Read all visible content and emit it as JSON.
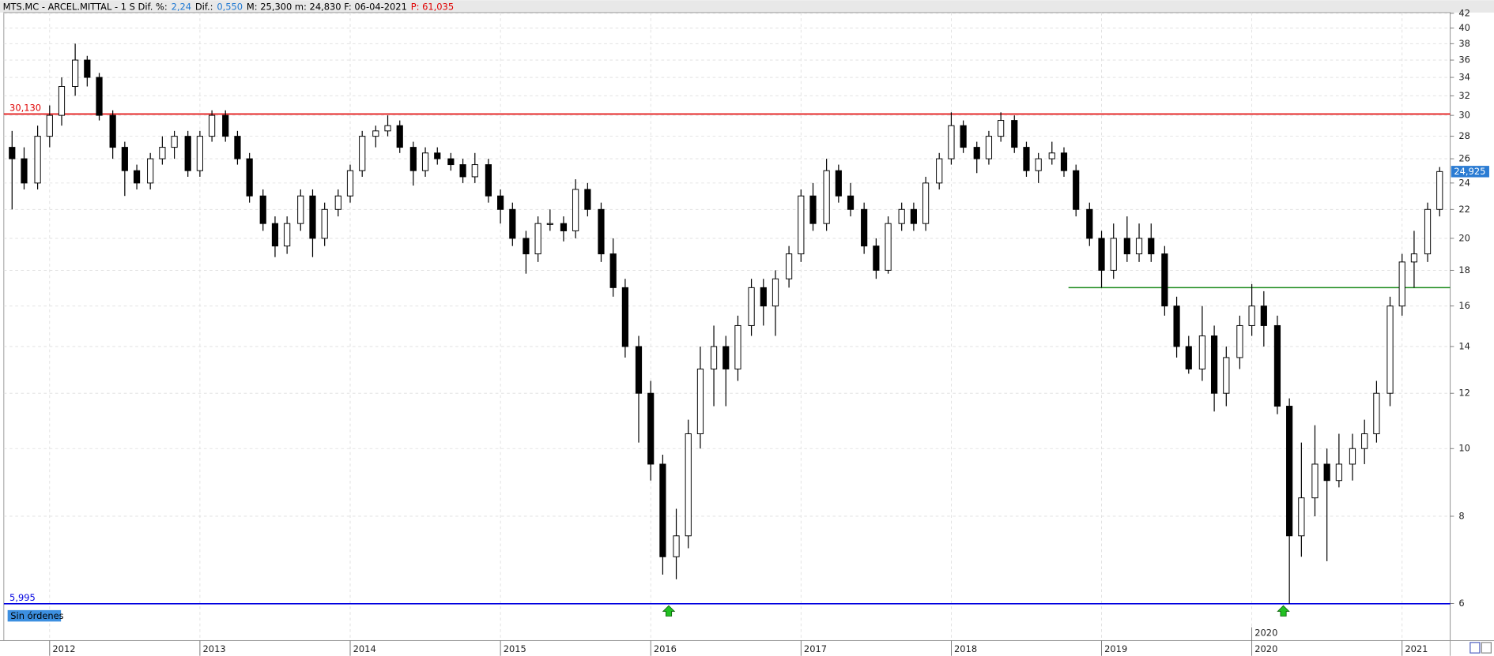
{
  "chart_data": {
    "type": "candlestick",
    "header": [
      {
        "text": "MTS.MC - ARCEL.MITTAL -  1 S  Dif. %:",
        "color": "#000000"
      },
      {
        "text": "2,24",
        "color": "#1e78d2"
      },
      {
        "text": "Dif.:",
        "color": "#000000"
      },
      {
        "text": "0,550",
        "color": "#1e78d2"
      },
      {
        "text": "M: 25,300  m: 24,830  F: 06-04-2021",
        "color": "#000000"
      },
      {
        "text": "P: 61,035",
        "color": "#e00000"
      }
    ],
    "x": [
      2011.75,
      2011.83,
      2011.92,
      2012.0,
      2012.08,
      2012.17,
      2012.25,
      2012.33,
      2012.42,
      2012.5,
      2012.58,
      2012.67,
      2012.75,
      2012.83,
      2012.92,
      2013.0,
      2013.08,
      2013.17,
      2013.25,
      2013.33,
      2013.42,
      2013.5,
      2013.58,
      2013.67,
      2013.75,
      2013.83,
      2013.92,
      2014.0,
      2014.08,
      2014.17,
      2014.25,
      2014.33,
      2014.42,
      2014.5,
      2014.58,
      2014.67,
      2014.75,
      2014.83,
      2014.92,
      2015.0,
      2015.08,
      2015.17,
      2015.25,
      2015.33,
      2015.42,
      2015.5,
      2015.58,
      2015.67,
      2015.75,
      2015.83,
      2015.92,
      2016.0,
      2016.08,
      2016.17,
      2016.25,
      2016.33,
      2016.42,
      2016.5,
      2016.58,
      2016.67,
      2016.75,
      2016.83,
      2016.92,
      2017.0,
      2017.08,
      2017.17,
      2017.25,
      2017.33,
      2017.42,
      2017.5,
      2017.58,
      2017.67,
      2017.75,
      2017.83,
      2017.92,
      2018.0,
      2018.08,
      2018.17,
      2018.25,
      2018.33,
      2018.42,
      2018.5,
      2018.58,
      2018.67,
      2018.75,
      2018.83,
      2018.92,
      2019.0,
      2019.08,
      2019.17,
      2019.25,
      2019.33,
      2019.42,
      2019.5,
      2019.58,
      2019.67,
      2019.75,
      2019.83,
      2019.92,
      2020.0,
      2020.08,
      2020.17,
      2020.25,
      2020.33,
      2020.42,
      2020.5,
      2020.58,
      2020.67,
      2020.75,
      2020.83,
      2020.92,
      2021.0,
      2021.08,
      2021.17,
      2021.25
    ],
    "open": [
      27,
      26,
      24,
      28,
      30,
      33,
      36,
      34,
      30,
      27,
      25,
      24,
      26,
      27,
      28,
      25,
      28,
      30,
      28,
      26,
      23,
      21,
      19.5,
      21,
      23,
      20,
      22,
      23,
      25,
      28,
      28.5,
      29,
      27,
      25,
      26.5,
      26,
      25.5,
      24.5,
      25.5,
      23,
      22,
      20,
      19,
      21,
      21,
      20.5,
      23.5,
      22,
      19,
      17,
      14,
      12,
      9.5,
      7,
      7.5,
      10.5,
      13,
      14,
      13,
      15,
      17,
      16,
      17.5,
      19,
      23,
      21,
      25,
      23,
      22,
      19.5,
      18,
      21,
      22,
      21,
      24,
      26,
      29,
      27,
      26,
      28,
      29.5,
      27,
      25,
      26,
      26.5,
      25,
      22,
      20,
      18,
      20,
      19,
      20,
      19,
      16,
      14,
      13,
      14.5,
      12,
      13.5,
      15,
      16,
      15,
      11.5,
      7.5,
      8.5,
      9.5,
      9,
      9.5,
      10,
      10.5,
      12,
      16,
      18.5,
      19,
      22
    ],
    "high": [
      28.5,
      27,
      29,
      31,
      34,
      38,
      36.5,
      34.5,
      30.5,
      27.5,
      25.5,
      26.5,
      28,
      28.5,
      28.5,
      28.5,
      30.5,
      30.5,
      28.5,
      26.5,
      23.5,
      21.5,
      21.5,
      23.5,
      23.5,
      22.5,
      23.5,
      25.5,
      28.5,
      29,
      30,
      29.5,
      27.5,
      27,
      27,
      26.5,
      26,
      26.5,
      26,
      23.5,
      22.5,
      20.5,
      21.5,
      22,
      21.5,
      24.3,
      24,
      22.5,
      20,
      17.5,
      14.5,
      12.5,
      9.8,
      8.2,
      11,
      14,
      15,
      14.5,
      15.5,
      17.5,
      17.5,
      18,
      19.5,
      23.5,
      24,
      26,
      25.5,
      24,
      22.5,
      20,
      21.5,
      22.5,
      22.5,
      24.5,
      26.5,
      30.3,
      29.5,
      27.5,
      28.5,
      30.3,
      30,
      27.5,
      26.5,
      27.5,
      27,
      25.5,
      22.5,
      20.5,
      21,
      21.5,
      21,
      21,
      19.5,
      16.5,
      14.5,
      16,
      15,
      14,
      15.5,
      17.2,
      16.8,
      15.5,
      11.8,
      10.2,
      10.8,
      10,
      10.5,
      10.5,
      11,
      12.5,
      16.5,
      19,
      20.5,
      22.5,
      25.3
    ],
    "low": [
      22,
      23.5,
      23.5,
      27,
      29,
      32,
      33,
      29.5,
      26,
      23,
      23.5,
      23.5,
      25.5,
      26,
      24.5,
      24.5,
      27.5,
      27.5,
      25.5,
      22.5,
      20.5,
      18.8,
      19,
      20.5,
      18.8,
      19.5,
      21.5,
      22.5,
      24.5,
      27,
      28,
      26.5,
      23.8,
      24.5,
      25.5,
      25,
      24,
      24,
      22.5,
      21,
      19.5,
      17.8,
      18.5,
      20.5,
      19.8,
      20,
      21.5,
      18.5,
      16.5,
      13.5,
      10.2,
      9,
      6.6,
      6.5,
      7.2,
      10,
      11.5,
      11.5,
      12.5,
      14.5,
      15,
      14.5,
      17,
      18.5,
      20.5,
      20.5,
      22.5,
      21.5,
      19,
      17.5,
      17.8,
      20.5,
      20.5,
      20.5,
      23.5,
      25.5,
      26.5,
      24.8,
      25.5,
      27.5,
      26.5,
      24.5,
      24,
      25.5,
      24.5,
      21.5,
      19.5,
      17,
      17.5,
      18.5,
      18.5,
      18.5,
      15.5,
      13.5,
      12.8,
      12.5,
      11.3,
      11.5,
      13,
      14.5,
      14,
      11.2,
      5.995,
      7,
      8,
      6.9,
      8.8,
      9,
      9.5,
      10.2,
      11.5,
      15.5,
      17,
      18.5,
      21.5
    ],
    "close": [
      26,
      24,
      28,
      30,
      33,
      36,
      34,
      30,
      27,
      25,
      24,
      26,
      27,
      28,
      25,
      28,
      30,
      28,
      26,
      23,
      21,
      19.5,
      21,
      23,
      20,
      22,
      23,
      25,
      28,
      28.5,
      29,
      27,
      25,
      26.5,
      26,
      25.5,
      24.5,
      25.5,
      23,
      22,
      20,
      19,
      21,
      21,
      20.5,
      23.5,
      22,
      19,
      17,
      14,
      12,
      9.5,
      7,
      7.5,
      10.5,
      13,
      14,
      13,
      15,
      17,
      16,
      17.5,
      19,
      23,
      21,
      25,
      23,
      22,
      19.5,
      18,
      21,
      22,
      21,
      24,
      26,
      29,
      27,
      26,
      28,
      29.5,
      27,
      25,
      26,
      26.5,
      25,
      22,
      20,
      18,
      20,
      19,
      20,
      19,
      16,
      14,
      13,
      14.5,
      12,
      13.5,
      15,
      16,
      15,
      11.5,
      7.5,
      8.5,
      9.5,
      9,
      9.5,
      10,
      10.5,
      12,
      16,
      18.5,
      19,
      22,
      24.925
    ],
    "up_color": "#ffffff",
    "down_color": "#000000",
    "wick_color": "#000000",
    "log_scale": true,
    "grid": true,
    "xlim": [
      2011.695,
      2021.32
    ],
    "xticks": [
      2012,
      2013,
      2014,
      2015,
      2016,
      2017,
      2018,
      2019,
      2020,
      2021
    ],
    "ylim": [
      5.31,
      42.1
    ],
    "yticks": [
      6,
      8,
      10,
      12,
      14,
      16,
      18,
      20,
      22,
      24,
      26,
      28,
      30,
      32,
      34,
      36,
      38,
      40,
      42
    ],
    "last_price": {
      "value": 24.925,
      "label": "24,925"
    },
    "levels": [
      {
        "value": 30.13,
        "label": "30,130",
        "color": "#e00000",
        "from": 2011.695
      },
      {
        "value": 17.0,
        "color": "#1a8a1a",
        "from": 2018.78
      },
      {
        "value": 5.995,
        "label": "5,995",
        "color": "#0000e0",
        "from": 2011.695
      }
    ],
    "signals": [
      {
        "x": 2016.12,
        "value": 5.995
      },
      {
        "x": 2020.21,
        "value": 5.995
      }
    ],
    "annotation": {
      "x": 2020,
      "text": "2020"
    },
    "status": "Sin órdenes"
  }
}
